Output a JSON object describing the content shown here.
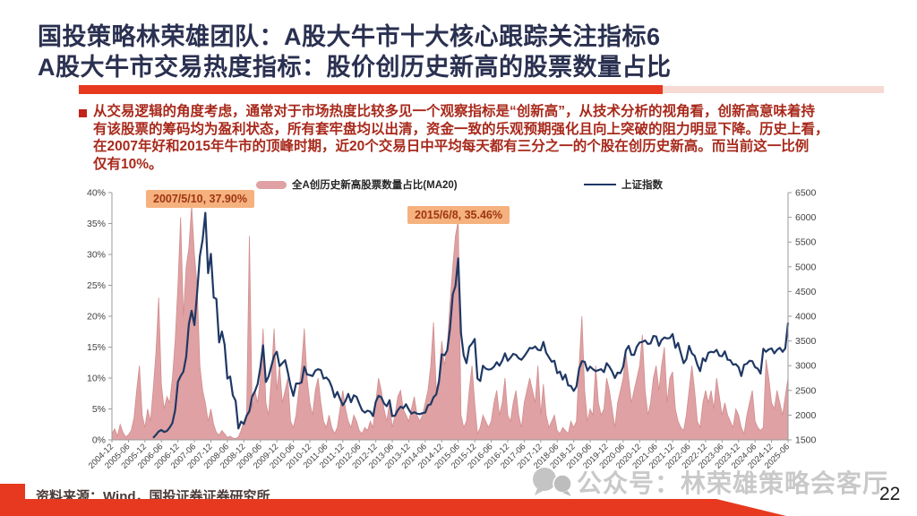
{
  "slide": {
    "title_line1": "国投策略林荣雄团队：A股大牛市十大核心跟踪关注指标6",
    "title_line2": "A股大牛市交易热度指标：股价创历史新高的股票数量占比",
    "paragraph_lines": [
      "从交易逻辑的角度考虑，通常对于市场热度比较多见一个观察指标是“创新高”，从技术分析的视角看，创新高意味着持",
      "有该股票的筹码均为盈利状态，所有套牢盘均以出清，资金一致的乐观预期强化且向上突破的阻力明显下降。历史上看，",
      "在2007年好和2015年牛市的顶峰时期，近20个交易日中平均每天都有三分之一的个股在创历史新高。而当前这一比例",
      "仅有10%。"
    ],
    "watermark": "公众号：林荣雄策略会客厅",
    "source_note": "资料来源：Wind，国投证券证券研究所",
    "page_number": "22"
  },
  "colors": {
    "title_navy": "#2A3050",
    "accent_red": "#E6391F",
    "paragraph_red": "#A8291B",
    "area_pink": "#DFA1A3",
    "line_blue": "#1F3864",
    "annotation_bg": "#F5B17E",
    "annotation_text": "#9E3513",
    "watermark_gray": "#C9C9C9"
  },
  "chart_data": {
    "type": "area+line",
    "x_unit": "month",
    "x_start": "2004-12",
    "x_end": "2025-06",
    "legend": [
      {
        "label": "全A创历史新高股票数量占比(MA20)",
        "type": "area",
        "color": "#DFA1A3"
      },
      {
        "label": "上证指数",
        "type": "line",
        "color": "#1F3864"
      }
    ],
    "left_axis": {
      "min": 0,
      "max": 40,
      "step": 5,
      "ticks": [
        "0%",
        "5%",
        "10%",
        "15%",
        "20%",
        "25%",
        "30%",
        "35%",
        "40%"
      ]
    },
    "right_axis": {
      "min": 1500,
      "max": 6500,
      "step": 500,
      "ticks": [
        "1500",
        "2000",
        "2500",
        "3000",
        "3500",
        "4000",
        "4500",
        "5000",
        "5500",
        "6000",
        "6500"
      ]
    },
    "x_tick_labels": [
      "2004-12",
      "2005-06",
      "2005-12",
      "2006-06",
      "2006-12",
      "2007-06",
      "2007-12",
      "2008-06",
      "2008-12",
      "2009-06",
      "2009-12",
      "2010-06",
      "2010-12",
      "2011-06",
      "2011-12",
      "2012-06",
      "2012-12",
      "2013-06",
      "2013-12",
      "2014-06",
      "2014-12",
      "2015-06",
      "2015-12",
      "2016-06",
      "2016-12",
      "2017-06",
      "2017-12",
      "2018-06",
      "2018-12",
      "2019-06",
      "2019-12",
      "2020-06",
      "2020-12",
      "2021-06",
      "2021-12",
      "2022-06",
      "2022-12",
      "2023-06",
      "2023-12",
      "2024-06",
      "2024-12",
      "2025-06"
    ],
    "annotations": [
      {
        "text": "2007/5/10, 37.90%",
        "x": "2007-05",
        "y": 37.9
      },
      {
        "text": "2015/6/8, 35.46%",
        "x": "2015-06",
        "y": 35.46
      }
    ],
    "series": [
      {
        "name": "全A创历史新高股票数量占比(MA20)",
        "axis": "left",
        "values": [
          1.0,
          1.8,
          0.6,
          2.5,
          1.2,
          0.5,
          0.8,
          1.5,
          3.5,
          8,
          12,
          4,
          2,
          5,
          3,
          8,
          14,
          23,
          9,
          5,
          7,
          6,
          10,
          16,
          25,
          36,
          20,
          28,
          31,
          37.9,
          30,
          25,
          12,
          8,
          6,
          3,
          5,
          2.5,
          1.2,
          0.8,
          1.5,
          1,
          0.4,
          0.6,
          0.3,
          0.2,
          0.5,
          1.5,
          3,
          4,
          33,
          5,
          8,
          6,
          10,
          18,
          6,
          4,
          10,
          18,
          8,
          12,
          6,
          8,
          10,
          3,
          2,
          4,
          8,
          12,
          18,
          10,
          6,
          4,
          8,
          10,
          6,
          3,
          2,
          4,
          2,
          1,
          2,
          5,
          8,
          5,
          3,
          2,
          4,
          3,
          1.5,
          1,
          2,
          1.5,
          3,
          2,
          6,
          10,
          8,
          5,
          3,
          6,
          2,
          4,
          7,
          8,
          5,
          4,
          3,
          5,
          7,
          4,
          3,
          4,
          6,
          8,
          12,
          19,
          8,
          10,
          16,
          12,
          15,
          22,
          28,
          33,
          35.5,
          4,
          2,
          3,
          8,
          12,
          6,
          1,
          2,
          4,
          3,
          2,
          3,
          6,
          8,
          4,
          6,
          10,
          4,
          3,
          6,
          8,
          4,
          2,
          6,
          8,
          10,
          8,
          6,
          12,
          4,
          9,
          4,
          2,
          3,
          4,
          1.5,
          1,
          2,
          1.5,
          1,
          3,
          2,
          3,
          12,
          20,
          8,
          3,
          5,
          4,
          12,
          6,
          4,
          5,
          10,
          8,
          5,
          2,
          6,
          8,
          10,
          14,
          10,
          6,
          8,
          10,
          12,
          17,
          8,
          4,
          6,
          10,
          12,
          8,
          12,
          15,
          6,
          10,
          11,
          5,
          3,
          2,
          1.5,
          4,
          8,
          12,
          8,
          3,
          2,
          6,
          8,
          6,
          8,
          5,
          10,
          7,
          4,
          6,
          4,
          3,
          2,
          5,
          4,
          2,
          1,
          4,
          6,
          8,
          3,
          2,
          1.5,
          2,
          13,
          10,
          6,
          5,
          8,
          6,
          4,
          7,
          10
        ]
      },
      {
        "name": "上证指数",
        "axis": "right",
        "values": [
          null,
          null,
          null,
          null,
          null,
          null,
          null,
          null,
          null,
          null,
          null,
          null,
          null,
          null,
          null,
          1540,
          1600,
          1670,
          1700,
          1660,
          1680,
          1750,
          1840,
          2100,
          2675,
          2790,
          2880,
          3180,
          3840,
          4110,
          3820,
          4470,
          5220,
          5550,
          6090,
          4870,
          5260,
          4380,
          4350,
          3470,
          3690,
          3430,
          2740,
          2780,
          2400,
          2290,
          1730,
          1870,
          1820,
          1990,
          2080,
          2370,
          2480,
          2630,
          2960,
          3410,
          2670,
          2780,
          2990,
          3200,
          3280,
          2990,
          3050,
          3110,
          2870,
          2590,
          2390,
          2640,
          2640,
          2660,
          2980,
          2820,
          2810,
          2790,
          2900,
          2930,
          2910,
          2740,
          2760,
          2700,
          2570,
          2360,
          2470,
          2330,
          2200,
          2290,
          2430,
          2260,
          2400,
          2370,
          2230,
          2100,
          2050,
          2090,
          2070,
          1980,
          2270,
          2390,
          2360,
          2240,
          2180,
          2300,
          1980,
          1990,
          2100,
          2170,
          2140,
          2220,
          2110,
          2030,
          2060,
          2030,
          2020,
          2040,
          2050,
          2200,
          2220,
          2360,
          2420,
          2680,
          3230,
          3210,
          3310,
          3750,
          4440,
          4610,
          5170,
          3660,
          3210,
          3050,
          3380,
          3450,
          3540,
          2740,
          2690,
          3000,
          2940,
          2920,
          2930,
          2980,
          3070,
          3000,
          3100,
          3250,
          3100,
          3160,
          3240,
          3220,
          3150,
          3120,
          3190,
          3270,
          3360,
          3350,
          3390,
          3320,
          3310,
          3480,
          3260,
          3170,
          3080,
          3100,
          2850,
          2880,
          2720,
          2820,
          2600,
          2590,
          2490,
          2580,
          2940,
          3090,
          3080,
          2900,
          2980,
          2930,
          2890,
          2910,
          2930,
          2870,
          3050,
          2980,
          2880,
          2750,
          2860,
          2850,
          2980,
          3310,
          3400,
          3220,
          3220,
          3390,
          3470,
          3480,
          3510,
          3440,
          3450,
          3600,
          3590,
          3400,
          3520,
          3570,
          3550,
          3560,
          3640,
          3360,
          3460,
          3250,
          3050,
          3130,
          3400,
          3250,
          3200,
          3020,
          2890,
          3150,
          3090,
          3260,
          3280,
          3270,
          3320,
          3200,
          3190,
          3290,
          3120,
          3110,
          3020,
          3030,
          2970,
          2790,
          3020,
          3040,
          3100,
          3090,
          2970,
          2940,
          2840,
          3340,
          3280,
          3330,
          3350,
          3250,
          3320,
          3360,
          3280,
          3350,
          3870
        ]
      }
    ]
  }
}
